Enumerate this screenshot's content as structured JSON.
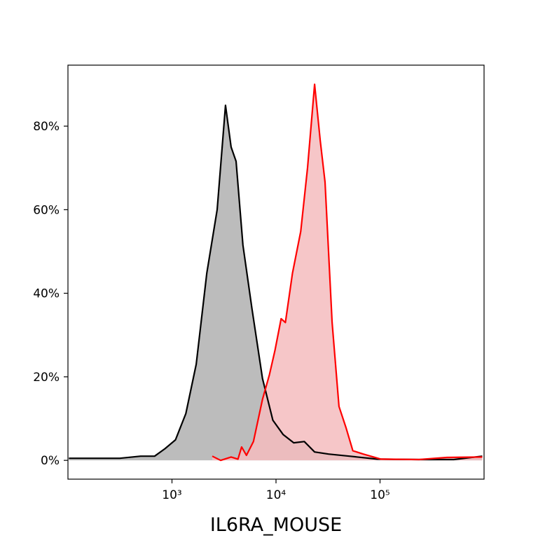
{
  "chart_data": {
    "type": "area",
    "x_label": "IL6RA_MOUSE",
    "xlog": true,
    "xlim": [
      100,
      1000000
    ],
    "xticks": [
      {
        "value": 1000,
        "label": "10³"
      },
      {
        "value": 10000,
        "label": "10⁴"
      },
      {
        "value": 100000,
        "label": "10⁵"
      }
    ],
    "ylim": [
      -4.5,
      94.6
    ],
    "yticks": [
      {
        "value": 0,
        "label": "0%"
      },
      {
        "value": 20,
        "label": "20%"
      },
      {
        "value": 40,
        "label": "40%"
      },
      {
        "value": 60,
        "label": "60%"
      },
      {
        "value": 80,
        "label": "80%"
      }
    ],
    "series": [
      {
        "color": "#000000",
        "fill": "#b0b0b0",
        "x": [
          102,
          315,
          500,
          681,
          857,
          1080,
          1360,
          1710,
          2160,
          2720,
          3270,
          3700,
          4130,
          4810,
          5870,
          7410,
          9330,
          11700,
          14800,
          18700,
          23500,
          32000,
          50800,
          94000,
          237000,
          512000,
          962000
        ],
        "values": [
          0.5,
          0.5,
          1.0,
          1.0,
          2.8,
          4.9,
          11.2,
          23,
          44.8,
          60,
          85,
          75,
          71.6,
          51.5,
          36.4,
          19.6,
          9.6,
          6.2,
          4.2,
          4.5,
          2.0,
          1.5,
          1.0,
          0.3,
          0.2,
          0.2,
          1.0
        ]
      },
      {
        "color": "#ff0000",
        "fill": "#f4bcbe",
        "x": [
          2440,
          2940,
          3700,
          4310,
          4670,
          5200,
          6070,
          7410,
          8640,
          9770,
          11200,
          12300,
          14400,
          17300,
          20100,
          23500,
          26600,
          29600,
          34600,
          40300,
          47000,
          54800,
          69000,
          102000,
          237000,
          438000,
          962000
        ],
        "values": [
          1.0,
          0,
          0.8,
          0.3,
          3.2,
          1.2,
          4.5,
          14.6,
          20.5,
          26.3,
          33.9,
          33,
          44.8,
          54.8,
          70,
          90,
          76.6,
          66.6,
          33,
          12.9,
          7.9,
          2.3,
          1.5,
          0.3,
          0.2,
          0.7,
          0.8
        ]
      }
    ]
  }
}
